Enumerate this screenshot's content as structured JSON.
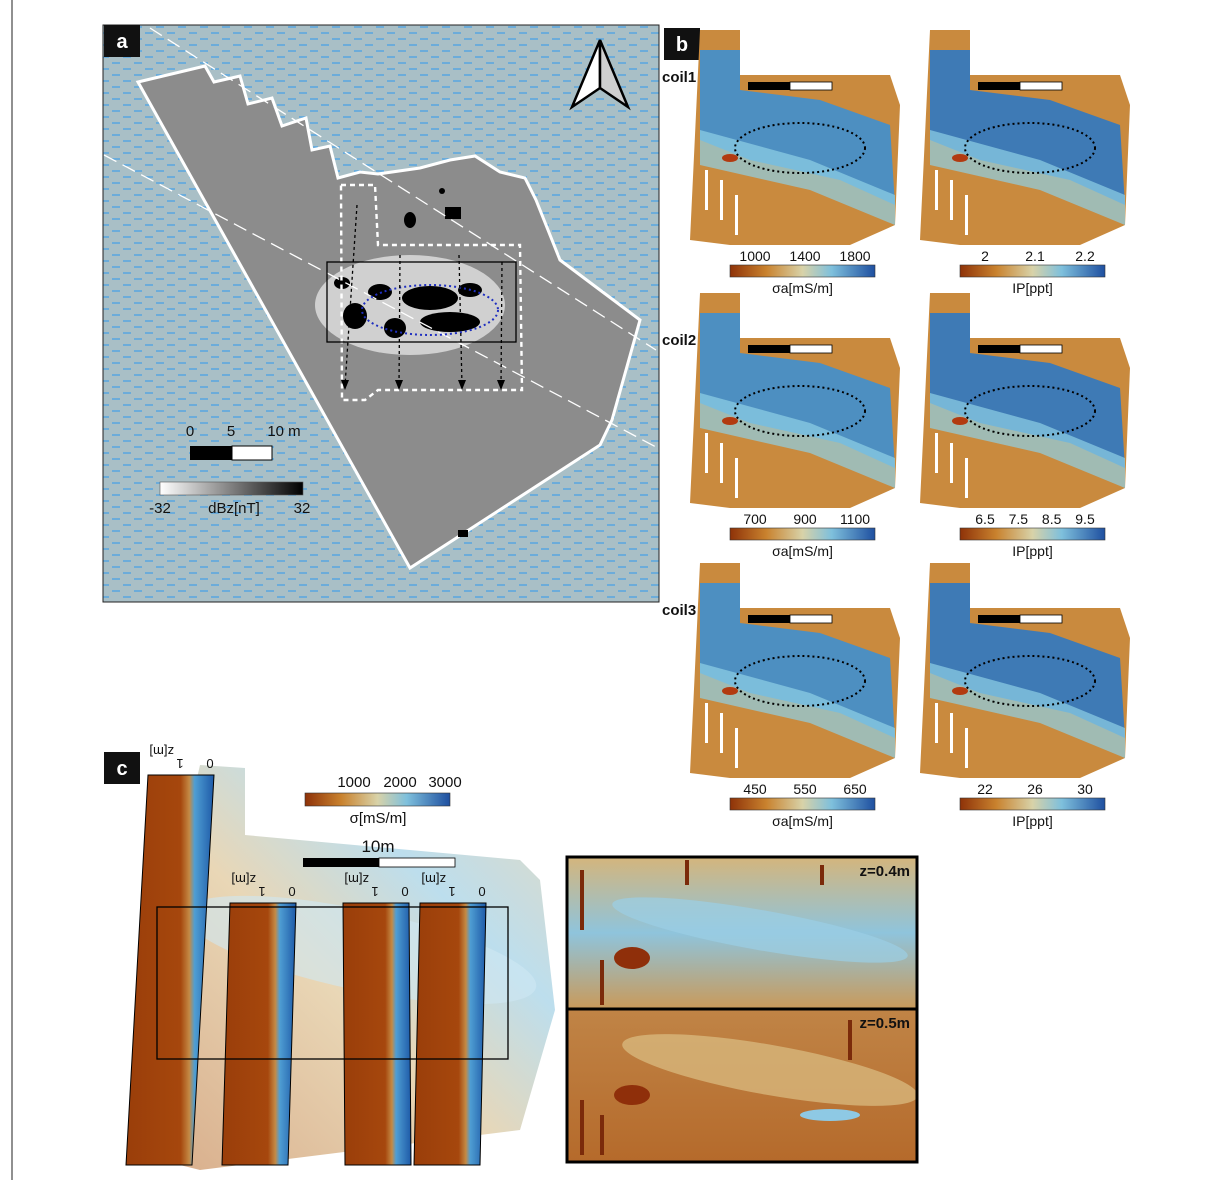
{
  "panels": {
    "a": {
      "label": "a",
      "scalebar_ticks": [
        "0",
        "5",
        "10 m"
      ],
      "colorbar": {
        "min": "-32",
        "label": "dBz[nT]",
        "max": "32"
      }
    },
    "b": {
      "label": "b",
      "rows": [
        {
          "name": "coil1",
          "sigma": {
            "ticks": [
              "1000",
              "1400",
              "1800"
            ],
            "label": "σa[mS/m]"
          },
          "ip": {
            "ticks": [
              "2",
              "2.1",
              "2.2"
            ],
            "label": "IP[ppt]"
          }
        },
        {
          "name": "coil2",
          "sigma": {
            "ticks": [
              "700",
              "900",
              "1100"
            ],
            "label": "σa[mS/m]"
          },
          "ip": {
            "ticks": [
              "6.5",
              "7.5",
              "8.5",
              "9.5"
            ],
            "label": "IP[ppt]"
          }
        },
        {
          "name": "coil3",
          "sigma": {
            "ticks": [
              "450",
              "550",
              "650"
            ],
            "label": "σa[mS/m]"
          },
          "ip": {
            "ticks": [
              "22",
              "26",
              "30"
            ],
            "label": "IP[ppt]"
          }
        }
      ]
    },
    "c": {
      "label": "c",
      "colorbar": {
        "ticks": [
          "1000",
          "2000",
          "3000"
        ],
        "label": "σ[mS/m]"
      },
      "scalebar_label": "10m",
      "depth_axis": {
        "label": "z[m]",
        "ticks": [
          "1",
          "0"
        ]
      },
      "slices": [
        "z=0.4m",
        "z=0.5m"
      ]
    }
  },
  "colors": {
    "water_bg": "#a9bfc6",
    "water_dash": "#4aa3e6",
    "rdylbu_low": "#a0410d",
    "rdylbu_mid": "#d8c287",
    "rdylbu_high": "#1f4fa1"
  }
}
